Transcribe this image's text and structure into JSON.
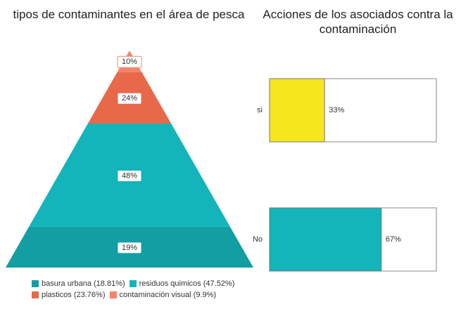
{
  "chart_data": [
    {
      "type": "pyramid",
      "title": "tipos de contaminantes en el área de pesca",
      "categories": [
        "basura urbana",
        "residuos quimicos",
        "plasticos",
        "contaminación visual"
      ],
      "values": [
        18.81,
        47.52,
        23.76,
        9.9
      ],
      "value_labels": [
        "19%",
        "48%",
        "24%",
        "10%"
      ],
      "legend_labels": [
        "basura urbana (18.81%)",
        "residuos quimicos (47.52%)",
        "plasticos (23.76%)",
        "contaminación visual (9.9%)"
      ],
      "colors": [
        "#129ea3",
        "#14b4bb",
        "#e8694a",
        "#f4856b"
      ]
    },
    {
      "type": "bar",
      "orientation": "horizontal",
      "title": "Acciones de los asociados contra la\ncontaminación",
      "categories": [
        "si",
        "No"
      ],
      "values": [
        33,
        67
      ],
      "value_labels": [
        "33%",
        "67%"
      ],
      "colors": [
        "#f5e61e",
        "#14b4bb"
      ],
      "xlim": [
        0,
        100
      ]
    }
  ]
}
